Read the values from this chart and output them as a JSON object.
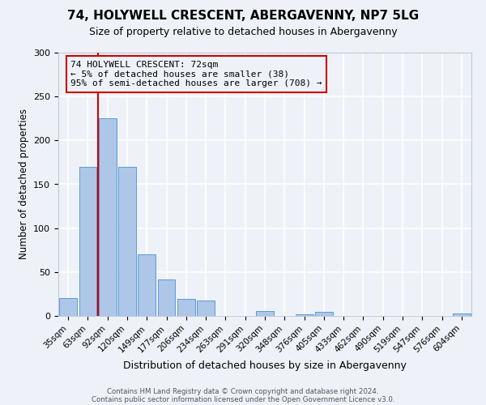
{
  "title": "74, HOLYWELL CRESCENT, ABERGAVENNY, NP7 5LG",
  "subtitle": "Size of property relative to detached houses in Abergavenny",
  "xlabel": "Distribution of detached houses by size in Abergavenny",
  "ylabel": "Number of detached properties",
  "bar_labels": [
    "35sqm",
    "63sqm",
    "92sqm",
    "120sqm",
    "149sqm",
    "177sqm",
    "206sqm",
    "234sqm",
    "263sqm",
    "291sqm",
    "320sqm",
    "348sqm",
    "376sqm",
    "405sqm",
    "433sqm",
    "462sqm",
    "490sqm",
    "519sqm",
    "547sqm",
    "576sqm",
    "604sqm"
  ],
  "bar_values": [
    20,
    170,
    225,
    170,
    70,
    42,
    19,
    18,
    0,
    0,
    6,
    0,
    2,
    5,
    0,
    0,
    0,
    0,
    0,
    0,
    3
  ],
  "bar_color": "#aec6e8",
  "bar_edge_color": "#5b9bd5",
  "ylim": [
    0,
    300
  ],
  "yticks": [
    0,
    50,
    100,
    150,
    200,
    250,
    300
  ],
  "vline_x": 1.5,
  "vline_color": "#cc0000",
  "annotation_title": "74 HOLYWELL CRESCENT: 72sqm",
  "annotation_line1": "← 5% of detached houses are smaller (38)",
  "annotation_line2": "95% of semi-detached houses are larger (708) →",
  "annotation_box_color": "#cc0000",
  "background_color": "#eef2f8",
  "footer1": "Contains HM Land Registry data © Crown copyright and database right 2024.",
  "footer2": "Contains public sector information licensed under the Open Government Licence v3.0."
}
